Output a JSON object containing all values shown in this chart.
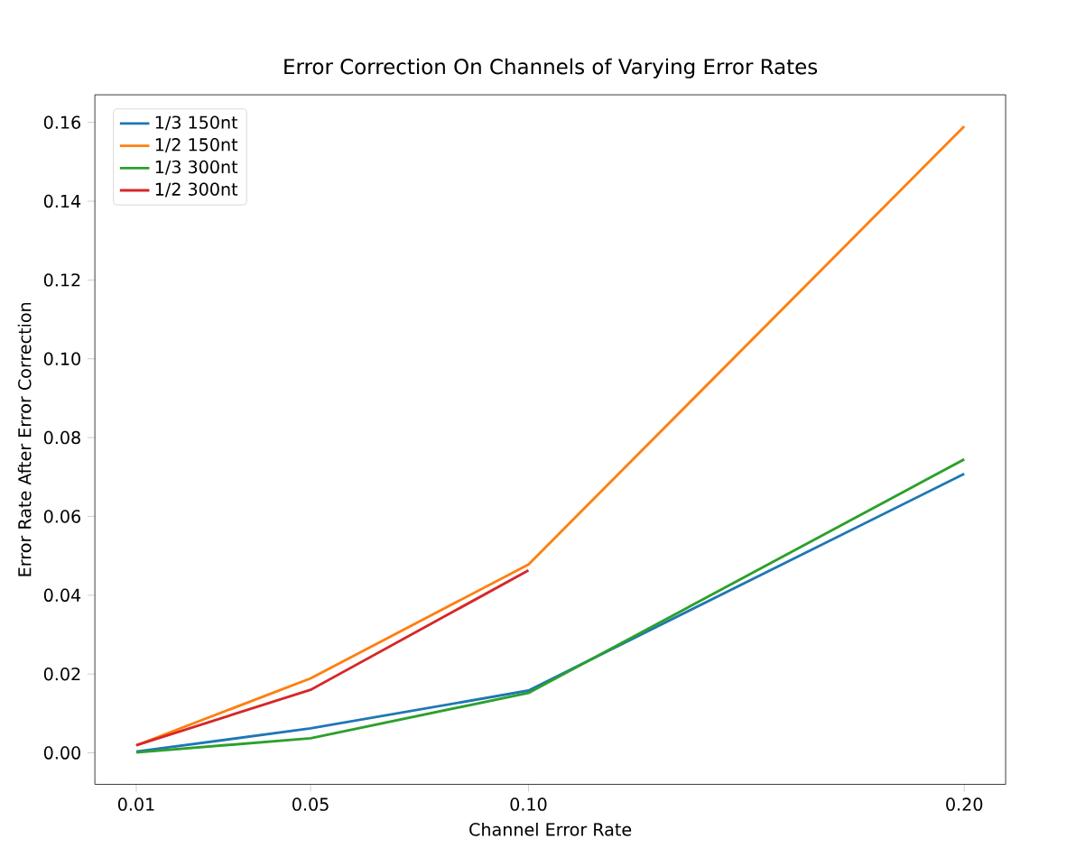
{
  "chart_data": {
    "type": "line",
    "title": "Error Correction On Channels of Varying Error Rates",
    "xlabel": "Channel Error Rate",
    "ylabel": "Error Rate After Error Correction",
    "x": [
      0.01,
      0.05,
      0.1,
      0.2
    ],
    "series": [
      {
        "name": "1/3 150nt",
        "color": "#1f77b4",
        "values": [
          0.0003,
          0.0062,
          0.0158,
          0.0708
        ]
      },
      {
        "name": "1/2 150nt",
        "color": "#ff7f0e",
        "values": [
          0.0019,
          0.0189,
          0.0478,
          0.159
        ]
      },
      {
        "name": "1/3 300nt",
        "color": "#2ca02c",
        "values": [
          0.0001,
          0.0037,
          0.0152,
          0.0745
        ]
      },
      {
        "name": "1/2 300nt",
        "color": "#d62728",
        "values": [
          0.0019,
          0.016,
          0.0463,
          null
        ]
      }
    ],
    "xlim": [
      0.0005,
      0.2095
    ],
    "ylim": [
      -0.008,
      0.167
    ],
    "xticks": [
      {
        "value": 0.01,
        "label": "0.01"
      },
      {
        "value": 0.05,
        "label": "0.05"
      },
      {
        "value": 0.1,
        "label": "0.10"
      },
      {
        "value": 0.2,
        "label": "0.20"
      }
    ],
    "yticks": [
      {
        "value": 0,
        "label": "0.00"
      },
      {
        "value": 0.02,
        "label": "0.02"
      },
      {
        "value": 0.04,
        "label": "0.04"
      },
      {
        "value": 0.06,
        "label": "0.06"
      },
      {
        "value": 0.08,
        "label": "0.08"
      },
      {
        "value": 0.1,
        "label": "0.10"
      },
      {
        "value": 0.12,
        "label": "0.12"
      },
      {
        "value": 0.14,
        "label": "0.14"
      },
      {
        "value": 0.16,
        "label": "0.16"
      }
    ],
    "legend": "top left",
    "grid": false
  }
}
